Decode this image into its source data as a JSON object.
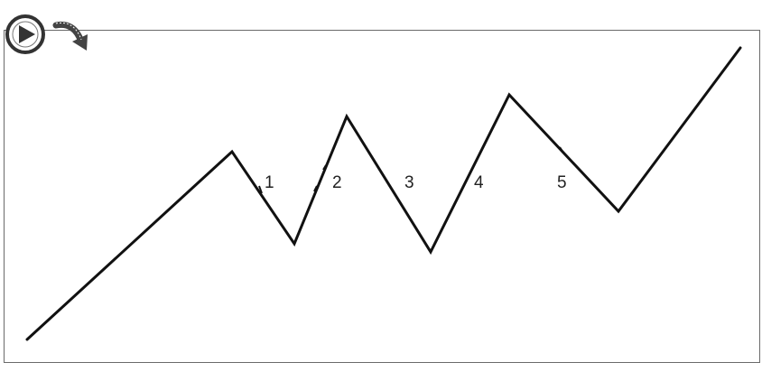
{
  "diagram": {
    "wave_labels": [
      "1",
      "2",
      "3",
      "4",
      "5"
    ],
    "line_color": "#111111",
    "frame_color": "#6a6a6a"
  },
  "logo": {
    "icon": "play-circle-icon",
    "arrow_icon": "curved-arrow-icon"
  }
}
